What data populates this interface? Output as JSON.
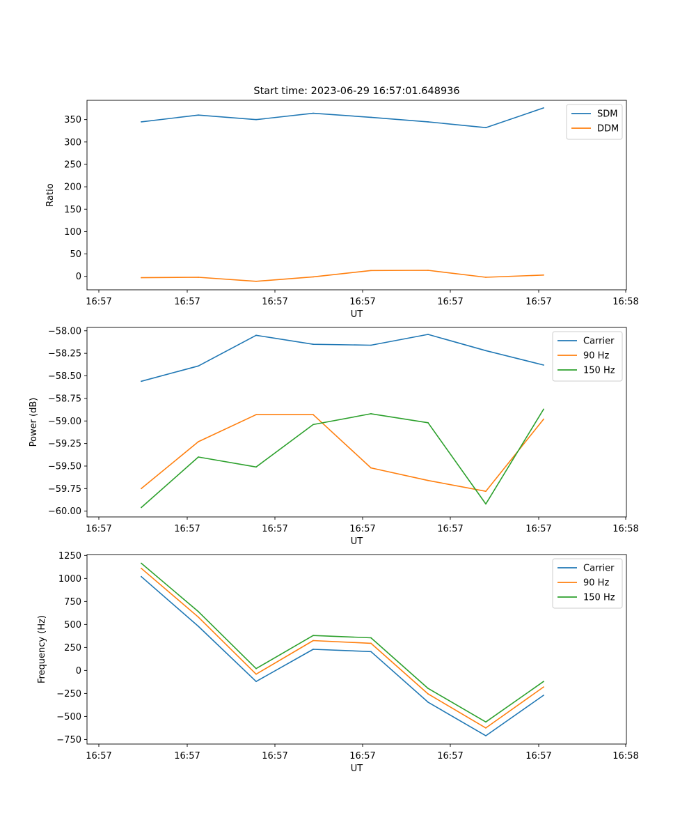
{
  "figure": {
    "title": "Start time: 2023-06-29 16:57:01.648936"
  },
  "colors": {
    "blue": "#1f77b4",
    "orange": "#ff7f0e",
    "green": "#2ca02c"
  },
  "chart_data": [
    {
      "type": "line",
      "title": "Start time: 2023-06-29 16:57:01.648936",
      "xlabel": "UT",
      "ylabel": "Ratio",
      "x": [
        "16:57",
        "16:57",
        "16:57",
        "16:57",
        "16:57",
        "16:57",
        "16:57",
        "16:57"
      ],
      "x_tick_labels": [
        "16:57",
        "16:57",
        "16:57",
        "16:57",
        "16:57",
        "16:57",
        "16:58"
      ],
      "y_ticks": [
        0,
        50,
        100,
        150,
        200,
        250,
        300,
        350
      ],
      "y_tick_labels": [
        "0",
        "50",
        "100",
        "150",
        "200",
        "250",
        "300",
        "350"
      ],
      "ylim": [
        -30,
        393
      ],
      "legend_position": "top-right",
      "grid": false,
      "series": [
        {
          "name": "SDM",
          "color": "#1f77b4",
          "values": [
            345,
            360,
            350,
            364,
            355,
            345,
            332,
            376
          ]
        },
        {
          "name": "DDM",
          "color": "#ff7f0e",
          "values": [
            -3,
            -2,
            -11,
            -1,
            13,
            13.5,
            -2,
            3
          ]
        }
      ]
    },
    {
      "type": "line",
      "title": "",
      "xlabel": "UT",
      "ylabel": "Power (dB)",
      "x": [
        "16:57",
        "16:57",
        "16:57",
        "16:57",
        "16:57",
        "16:57",
        "16:57",
        "16:57"
      ],
      "x_tick_labels": [
        "16:57",
        "16:57",
        "16:57",
        "16:57",
        "16:57",
        "16:57",
        "16:58"
      ],
      "y_ticks": [
        -60.0,
        -59.75,
        -59.5,
        -59.25,
        -59.0,
        -58.75,
        -58.5,
        -58.25,
        -58.0
      ],
      "y_tick_labels": [
        "−60.00",
        "−59.75",
        "−59.50",
        "−59.25",
        "−59.00",
        "−58.75",
        "−58.50",
        "−58.25",
        "−58.00"
      ],
      "ylim": [
        -60.064,
        -57.963
      ],
      "legend_position": "top-right",
      "grid": false,
      "series": [
        {
          "name": "Carrier",
          "color": "#1f77b4",
          "values": [
            -58.56,
            -58.39,
            -58.05,
            -58.15,
            -58.16,
            -58.04,
            -58.22,
            -58.38
          ]
        },
        {
          "name": "90 Hz",
          "color": "#ff7f0e",
          "values": [
            -59.75,
            -59.23,
            -58.93,
            -58.93,
            -59.52,
            -59.66,
            -59.78,
            -58.98
          ]
        },
        {
          "name": "150 Hz",
          "color": "#2ca02c",
          "values": [
            -59.96,
            -59.4,
            -59.51,
            -59.04,
            -58.92,
            -59.02,
            -59.92,
            -58.87
          ]
        }
      ]
    },
    {
      "type": "line",
      "title": "",
      "xlabel": "UT",
      "ylabel": "Frequency (Hz)",
      "x": [
        "16:57",
        "16:57",
        "16:57",
        "16:57",
        "16:57",
        "16:57",
        "16:57",
        "16:57"
      ],
      "x_tick_labels": [
        "16:57",
        "16:57",
        "16:57",
        "16:57",
        "16:57",
        "16:57",
        "16:58"
      ],
      "y_ticks": [
        -750,
        -500,
        -250,
        0,
        250,
        500,
        750,
        1000,
        1250
      ],
      "y_tick_labels": [
        "−750",
        "−500",
        "−250",
        "0",
        "250",
        "500",
        "750",
        "1000",
        "1250"
      ],
      "ylim": [
        -800,
        1260
      ],
      "legend_position": "top-right",
      "grid": false,
      "series": [
        {
          "name": "Carrier",
          "color": "#1f77b4",
          "values": [
            1020,
            480,
            -120,
            230,
            205,
            -345,
            -710,
            -270
          ]
        },
        {
          "name": "90 Hz",
          "color": "#ff7f0e",
          "values": [
            1110,
            580,
            -40,
            325,
            295,
            -255,
            -625,
            -180
          ]
        },
        {
          "name": "150 Hz",
          "color": "#2ca02c",
          "values": [
            1165,
            640,
            20,
            380,
            355,
            -195,
            -560,
            -120
          ]
        }
      ]
    }
  ]
}
